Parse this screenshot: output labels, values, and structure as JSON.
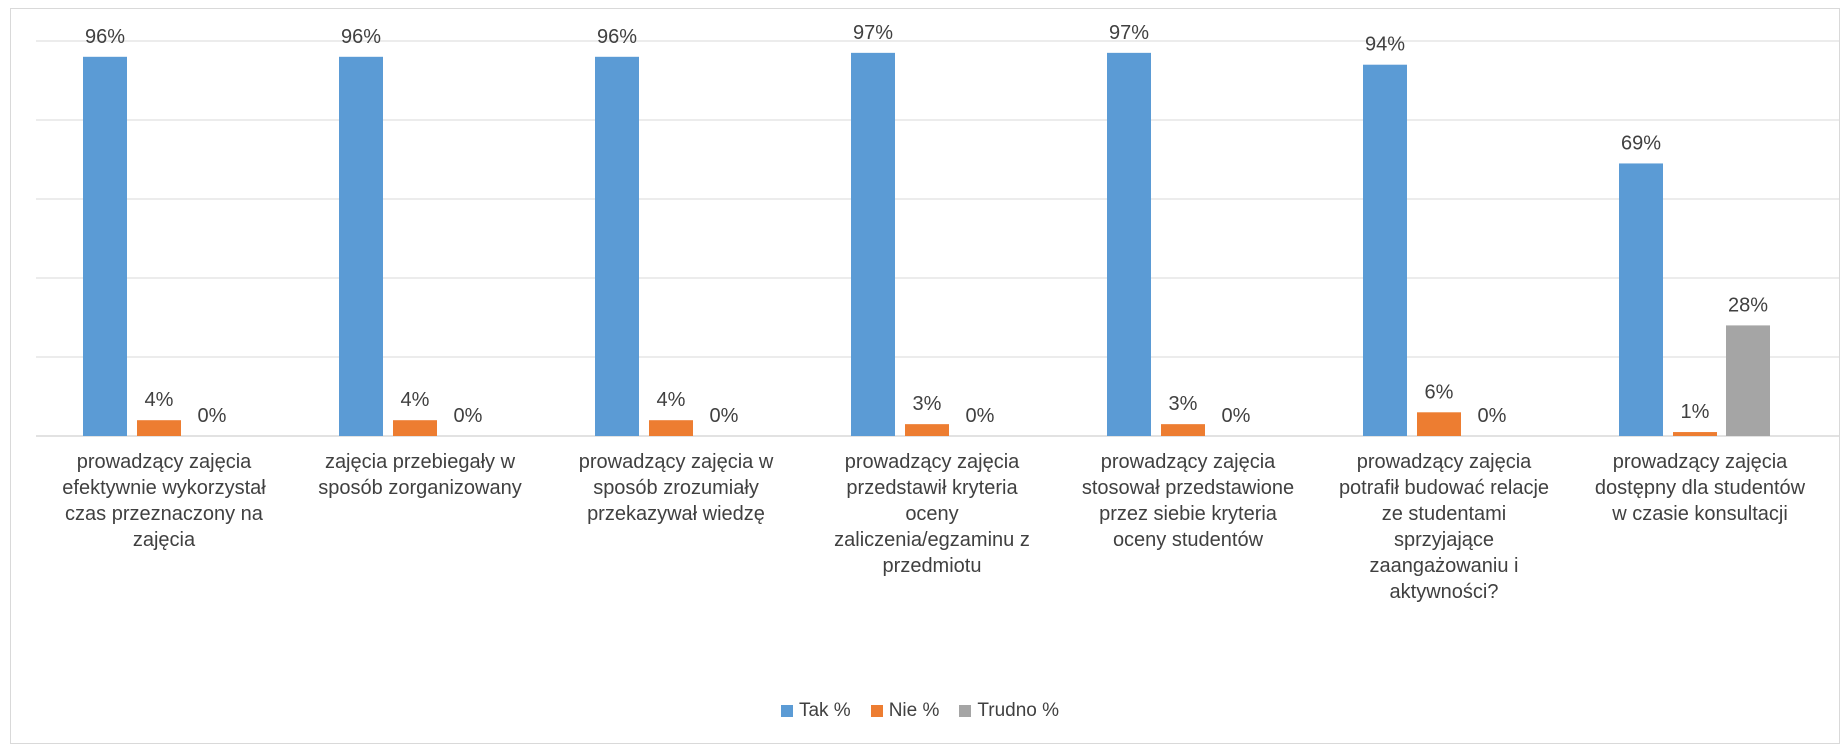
{
  "chart_data": {
    "type": "bar",
    "categories": [
      "prowadzący zajęcia efektywnie wykorzystał czas przeznaczony na zajęcia",
      "zajęcia przebiegały w sposób zorganizowany",
      "prowadzący zajęcia w sposób zrozumiały przekazywał wiedzę",
      "prowadzący zajęcia przedstawił kryteria oceny zaliczenia/egzaminu z przedmiotu",
      "prowadzący zajęcia stosował przedstawione przez siebie kryteria oceny studentów",
      "prowadzący zajęcia potrafił budować relacje ze studentami sprzyjające zaangażowaniu i aktywności?",
      "prowadzący zajęcia dostępny dla studentów w czasie konsultacji"
    ],
    "category_lines": [
      [
        "prowadzący zajęcia",
        "efektywnie wykorzystał",
        "czas przeznaczony na",
        "zajęcia"
      ],
      [
        "zajęcia przebiegały w",
        "sposób zorganizowany"
      ],
      [
        "prowadzący zajęcia w",
        "sposób zrozumiały",
        "przekazywał wiedzę"
      ],
      [
        "prowadzący zajęcia",
        "przedstawił kryteria",
        "oceny",
        "zaliczenia/egzaminu z",
        "przedmiotu"
      ],
      [
        "prowadzący zajęcia",
        "stosował przedstawione",
        "przez siebie kryteria",
        "oceny studentów"
      ],
      [
        "prowadzący zajęcia",
        "potrafił budować relacje",
        "ze studentami sprzyjające",
        "zaangażowaniu i",
        "aktywności?"
      ],
      [
        "prowadzący zajęcia",
        "dostępny dla studentów",
        "w czasie konsultacji"
      ]
    ],
    "series": [
      {
        "name": "Tak %",
        "color": "#5B9BD5",
        "values": [
          96,
          96,
          96,
          97,
          97,
          94,
          69
        ],
        "labels": [
          "96%",
          "96%",
          "96%",
          "97%",
          "97%",
          "94%",
          "69%"
        ]
      },
      {
        "name": "Nie %",
        "color": "#ED7D31",
        "values": [
          4,
          4,
          4,
          3,
          3,
          6,
          1
        ],
        "labels": [
          "4%",
          "4%",
          "4%",
          "3%",
          "3%",
          "6%",
          "1%"
        ]
      },
      {
        "name": "Trudno %",
        "color": "#A5A5A5",
        "values": [
          0,
          0,
          0,
          0,
          0,
          0,
          28
        ],
        "labels": [
          "0%",
          "0%",
          "0%",
          "0%",
          "0%",
          "0%",
          "28%"
        ]
      }
    ],
    "ylim": [
      0,
      120
    ],
    "ytick_step": 20,
    "grid": true,
    "legend_position": "bottom",
    "title": "",
    "xlabel": "",
    "ylabel": ""
  }
}
